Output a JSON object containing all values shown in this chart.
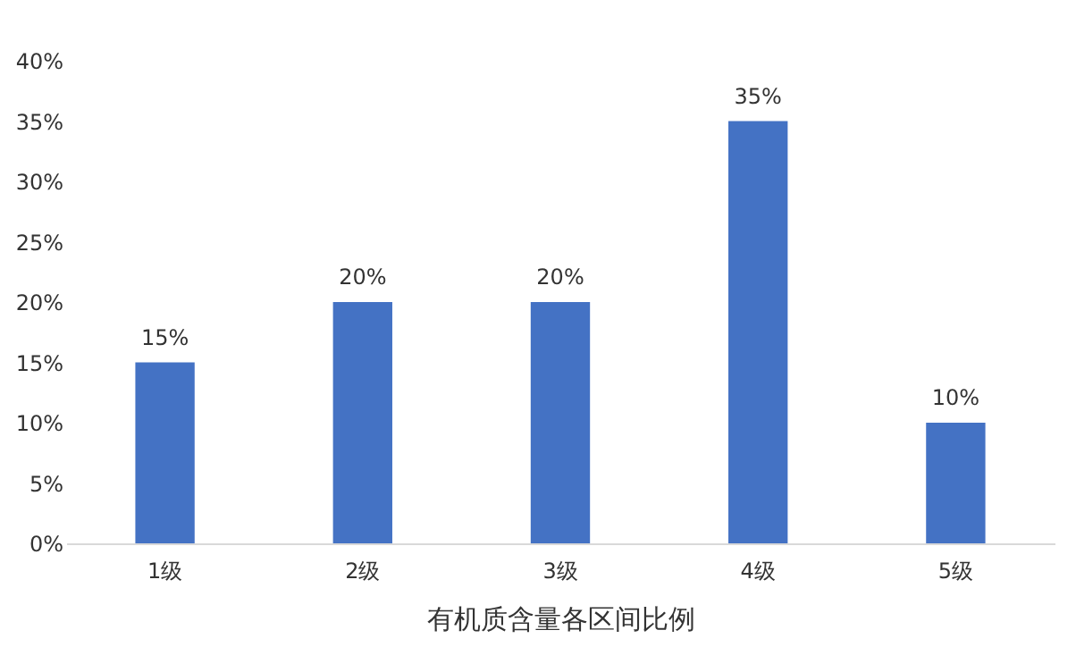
{
  "chart_data": {
    "type": "bar",
    "xlabel": "有机质含量各区间比例",
    "categories": [
      "1级",
      "2级",
      "3级",
      "4级",
      "5级"
    ],
    "values": [
      15,
      20,
      20,
      35,
      10
    ],
    "value_labels": [
      "15%",
      "20%",
      "20%",
      "35%",
      "10%"
    ],
    "color": "#4472c4",
    "ylim": [
      0,
      40
    ],
    "yticks": [
      {
        "value": 0,
        "label": "0%"
      },
      {
        "value": 5,
        "label": "5%"
      },
      {
        "value": 10,
        "label": "10%"
      },
      {
        "value": 15,
        "label": "15%"
      },
      {
        "value": 20,
        "label": "20%"
      },
      {
        "value": 25,
        "label": "25%"
      },
      {
        "value": 30,
        "label": "30%"
      },
      {
        "value": 35,
        "label": "35%"
      },
      {
        "value": 40,
        "label": "40%"
      }
    ],
    "grid": false
  }
}
